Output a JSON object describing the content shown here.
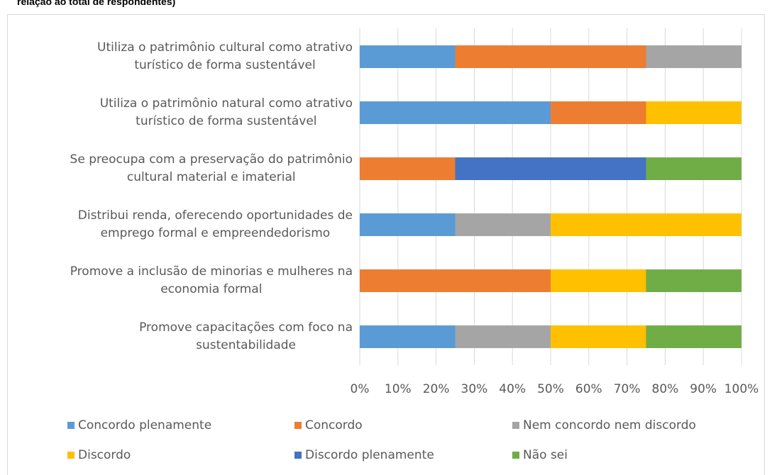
{
  "chart_data": {
    "type": "stacked_bar_horizontal",
    "title": "relação ao total de respondentes)",
    "categories": [
      "Utiliza o patrimônio cultural como atrativo\nturístico de forma sustentável",
      "Utiliza o patrimônio natural como atrativo\nturístico de forma sustentável",
      "Se preocupa com a preservação do patrimônio\ncultural material e imaterial",
      "Distribui renda, oferecendo oportunidades de\nemprego formal e empreendedorismo",
      "Promove a inclusão de minorias e mulheres na\neconomia formal",
      "Promove capacitações com foco na\nsustentabilidade"
    ],
    "series": [
      {
        "name": "Concordo plenamente",
        "color": "#5b9bd5",
        "values": [
          25,
          50,
          0,
          25,
          0,
          25
        ]
      },
      {
        "name": "Concordo",
        "color": "#ed7d31",
        "values": [
          50,
          25,
          25,
          0,
          50,
          0
        ]
      },
      {
        "name": "Nem concordo nem discordo",
        "color": "#a5a5a5",
        "values": [
          25,
          0,
          0,
          25,
          0,
          25
        ]
      },
      {
        "name": "Discordo",
        "color": "#ffc000",
        "values": [
          0,
          25,
          0,
          50,
          25,
          25
        ]
      },
      {
        "name": "Discordo plenamente",
        "color": "#4472c4",
        "values": [
          0,
          0,
          50,
          0,
          0,
          0
        ]
      },
      {
        "name": "Não sei",
        "color": "#70ad47",
        "values": [
          0,
          0,
          25,
          0,
          25,
          25
        ]
      }
    ],
    "xlim": [
      0,
      100
    ],
    "xticks": [
      {
        "value": 0,
        "label": "0%"
      },
      {
        "value": 10,
        "label": "10%"
      },
      {
        "value": 20,
        "label": "20%"
      },
      {
        "value": 30,
        "label": "30%"
      },
      {
        "value": 40,
        "label": "40%"
      },
      {
        "value": 50,
        "label": "50%"
      },
      {
        "value": 60,
        "label": "60%"
      },
      {
        "value": 70,
        "label": "70%"
      },
      {
        "value": 80,
        "label": "80%"
      },
      {
        "value": 90,
        "label": "90%"
      },
      {
        "value": 100,
        "label": "100%"
      }
    ],
    "grid": true,
    "legend": "bottom"
  }
}
